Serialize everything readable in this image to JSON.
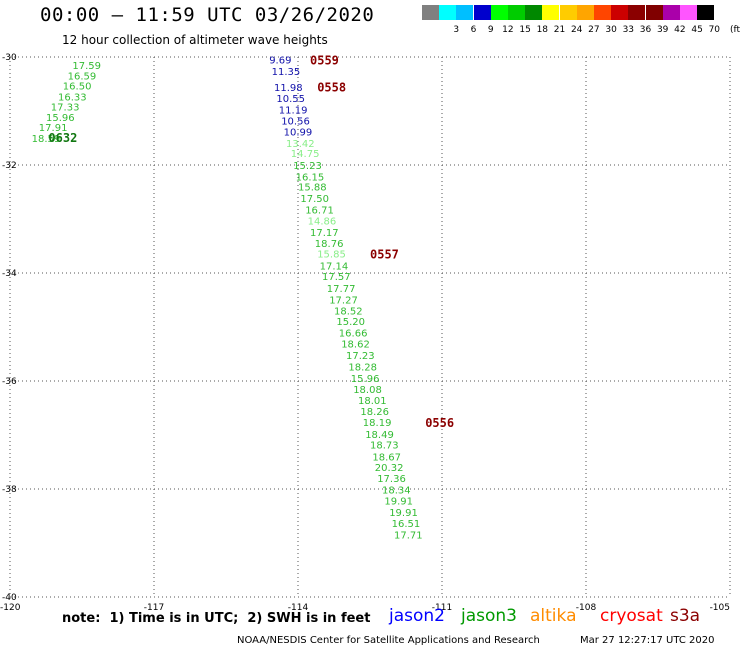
{
  "header": {
    "title": "00:00 – 11:59 UTC 03/26/2020",
    "subtitle": "12 hour collection of altimeter wave heights"
  },
  "color_scale": {
    "unit": "(ft)",
    "bins": [
      {
        "label": "",
        "color": "#808080"
      },
      {
        "label": "3",
        "color": "#00ffff"
      },
      {
        "label": "6",
        "color": "#00bfff"
      },
      {
        "label": "9",
        "color": "#0000cd"
      },
      {
        "label": "12",
        "color": "#00ff00"
      },
      {
        "label": "15",
        "color": "#00cc00"
      },
      {
        "label": "18",
        "color": "#008800"
      },
      {
        "label": "21",
        "color": "#ffff00"
      },
      {
        "label": "24",
        "color": "#ffcc00"
      },
      {
        "label": "27",
        "color": "#ffa500"
      },
      {
        "label": "30",
        "color": "#ff4500"
      },
      {
        "label": "33",
        "color": "#cc0000"
      },
      {
        "label": "36",
        "color": "#8b0000"
      },
      {
        "label": "39",
        "color": "#800000"
      },
      {
        "label": "42",
        "color": "#aa00aa"
      },
      {
        "label": "45",
        "color": "#ff55ff"
      },
      {
        "label": "70",
        "color": "#000000"
      }
    ]
  },
  "map": {
    "lat_range": [
      -40,
      -30
    ],
    "lon_range": [
      -120,
      -105
    ],
    "lat_ticks": [
      {
        "value": -30,
        "label": "-30"
      },
      {
        "value": -32,
        "label": "-32"
      },
      {
        "value": -34,
        "label": "-34"
      },
      {
        "value": -36,
        "label": "-36"
      },
      {
        "value": -38,
        "label": "-38"
      },
      {
        "value": -40,
        "label": "-40"
      }
    ],
    "lon_ticks": [
      {
        "value": -120,
        "label": "-120"
      },
      {
        "value": -117,
        "label": "-117"
      },
      {
        "value": -114,
        "label": "-114"
      },
      {
        "value": -111,
        "label": "-111"
      },
      {
        "value": -108,
        "label": "-108"
      },
      {
        "value": -105,
        "label": "-105"
      }
    ]
  },
  "tracks": [
    {
      "points": [
        {
          "lon": -118.7,
          "lat": -30.15,
          "v": "17.59",
          "c": "#33bb33"
        },
        {
          "lon": -118.8,
          "lat": -30.34,
          "v": "16.59",
          "c": "#33bb33"
        },
        {
          "lon": -118.9,
          "lat": -30.53,
          "v": "16.50",
          "c": "#33bb33"
        },
        {
          "lon": -119.0,
          "lat": -30.73,
          "v": "16.33",
          "c": "#33bb33"
        },
        {
          "lon": -119.15,
          "lat": -30.92,
          "v": "17.33",
          "c": "#33bb33"
        },
        {
          "lon": -119.25,
          "lat": -31.11,
          "v": "15.96",
          "c": "#33bb33"
        },
        {
          "lon": -119.4,
          "lat": -31.3,
          "v": "17.91",
          "c": "#33bb33"
        },
        {
          "lon": -119.55,
          "lat": -31.5,
          "v": "18.59",
          "c": "#33bb33"
        }
      ],
      "time": {
        "lon": -119.2,
        "lat": -31.48,
        "t": "0632",
        "c": "#117711"
      }
    },
    {
      "points": [
        {
          "lon": -114.6,
          "lat": -30.05,
          "v": "9.69",
          "c": "#1111aa"
        },
        {
          "lon": -114.55,
          "lat": -30.26,
          "v": "11.35",
          "c": "#1111aa"
        },
        {
          "lon": -114.5,
          "lat": -30.56,
          "v": "11.98",
          "c": "#1111aa"
        },
        {
          "lon": -114.45,
          "lat": -30.76,
          "v": "10.55",
          "c": "#1111aa"
        },
        {
          "lon": -114.4,
          "lat": -30.97,
          "v": "11.19",
          "c": "#1111aa"
        },
        {
          "lon": -114.35,
          "lat": -31.18,
          "v": "10.56",
          "c": "#1111aa"
        },
        {
          "lon": -114.3,
          "lat": -31.38,
          "v": "10.99",
          "c": "#1111aa"
        },
        {
          "lon": -114.25,
          "lat": -31.59,
          "v": "13.42",
          "c": "#88ee88"
        },
        {
          "lon": -114.15,
          "lat": -31.78,
          "v": "14.75",
          "c": "#88ee88"
        },
        {
          "lon": -114.1,
          "lat": -32.0,
          "v": "15.23",
          "c": "#33bb33"
        },
        {
          "lon": -114.05,
          "lat": -32.21,
          "v": "16.15",
          "c": "#33bb33"
        },
        {
          "lon": -114.0,
          "lat": -32.4,
          "v": "15.88",
          "c": "#33bb33"
        },
        {
          "lon": -113.95,
          "lat": -32.61,
          "v": "17.50",
          "c": "#33bb33"
        },
        {
          "lon": -113.85,
          "lat": -32.82,
          "v": "16.71",
          "c": "#33bb33"
        },
        {
          "lon": -113.8,
          "lat": -33.03,
          "v": "14.86",
          "c": "#88ee88"
        },
        {
          "lon": -113.75,
          "lat": -33.24,
          "v": "17.17",
          "c": "#33bb33"
        },
        {
          "lon": -113.65,
          "lat": -33.44,
          "v": "18.76",
          "c": "#33bb33"
        },
        {
          "lon": -113.6,
          "lat": -33.64,
          "v": "15.85",
          "c": "#88ee88"
        },
        {
          "lon": -113.55,
          "lat": -33.86,
          "v": "17.14",
          "c": "#33bb33"
        },
        {
          "lon": -113.5,
          "lat": -34.06,
          "v": "17.57",
          "c": "#33bb33"
        },
        {
          "lon": -113.4,
          "lat": -34.28,
          "v": "17.77",
          "c": "#33bb33"
        },
        {
          "lon": -113.35,
          "lat": -34.49,
          "v": "17.27",
          "c": "#33bb33"
        },
        {
          "lon": -113.25,
          "lat": -34.69,
          "v": "18.52",
          "c": "#33bb33"
        },
        {
          "lon": -113.2,
          "lat": -34.89,
          "v": "15.20",
          "c": "#33bb33"
        },
        {
          "lon": -113.15,
          "lat": -35.1,
          "v": "16.66",
          "c": "#33bb33"
        },
        {
          "lon": -113.1,
          "lat": -35.31,
          "v": "18.62",
          "c": "#33bb33"
        },
        {
          "lon": -113.0,
          "lat": -35.52,
          "v": "17.23",
          "c": "#33bb33"
        },
        {
          "lon": -112.95,
          "lat": -35.73,
          "v": "18.28",
          "c": "#33bb33"
        },
        {
          "lon": -112.9,
          "lat": -35.94,
          "v": "15.96",
          "c": "#33bb33"
        },
        {
          "lon": -112.85,
          "lat": -36.15,
          "v": "18.08",
          "c": "#33bb33"
        },
        {
          "lon": -112.75,
          "lat": -36.35,
          "v": "18.01",
          "c": "#33bb33"
        },
        {
          "lon": -112.7,
          "lat": -36.56,
          "v": "18.26",
          "c": "#33bb33"
        },
        {
          "lon": -112.65,
          "lat": -36.76,
          "v": "18.19",
          "c": "#33bb33"
        },
        {
          "lon": -112.6,
          "lat": -36.98,
          "v": "18.49",
          "c": "#33bb33"
        },
        {
          "lon": -112.5,
          "lat": -37.18,
          "v": "18.73",
          "c": "#33bb33"
        },
        {
          "lon": -112.45,
          "lat": -37.4,
          "v": "18.67",
          "c": "#33bb33"
        },
        {
          "lon": -112.4,
          "lat": -37.59,
          "v": "20.32",
          "c": "#33bb33"
        },
        {
          "lon": -112.35,
          "lat": -37.8,
          "v": "17.36",
          "c": "#33bb33"
        },
        {
          "lon": -112.25,
          "lat": -38.01,
          "v": "18.34",
          "c": "#33bb33"
        },
        {
          "lon": -112.2,
          "lat": -38.21,
          "v": "19.91",
          "c": "#33bb33"
        },
        {
          "lon": -112.1,
          "lat": -38.43,
          "v": "19.91",
          "c": "#33bb33"
        },
        {
          "lon": -112.05,
          "lat": -38.63,
          "v": "16.51",
          "c": "#33bb33"
        },
        {
          "lon": -112.0,
          "lat": -38.84,
          "v": "17.71",
          "c": "#33bb33"
        }
      ],
      "time": null
    }
  ],
  "time_labels": [
    {
      "lon": -113.75,
      "lat": -30.05,
      "t": "0559",
      "c": "#8b0000"
    },
    {
      "lon": -113.6,
      "lat": -30.55,
      "t": "0558",
      "c": "#8b0000"
    },
    {
      "lon": -112.5,
      "lat": -33.64,
      "t": "0557",
      "c": "#8b0000"
    },
    {
      "lon": -111.35,
      "lat": -36.76,
      "t": "0556",
      "c": "#8b0000"
    }
  ],
  "footer": {
    "note": "note:  1) Time is in UTC;  2) SWH is in feet",
    "missions": [
      {
        "name": "jason2",
        "color": "#0000ff"
      },
      {
        "name": "jason3",
        "color": "#009900"
      },
      {
        "name": "altika",
        "color": "#ff8c00"
      },
      {
        "name": "cryosat",
        "color": "#ff0000"
      },
      {
        "name": "s3a",
        "color": "#8b0000"
      }
    ],
    "credit": "NOAA/NESDIS Center for Satellite Applications and Research",
    "generated": "Mar 27 12:27:17 UTC 2020"
  }
}
